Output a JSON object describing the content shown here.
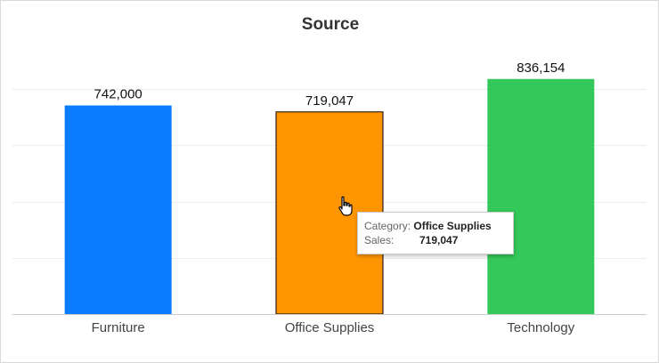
{
  "chart_data": {
    "type": "bar",
    "title": "Source",
    "categories": [
      "Furniture",
      "Office Supplies",
      "Technology"
    ],
    "values": [
      742000,
      719047,
      836154
    ],
    "value_labels": [
      "742,000",
      "719,047",
      "836,154"
    ],
    "ylim": [
      0,
      1000000
    ],
    "grid": true,
    "legend": "none",
    "colors": [
      "#0a7cff",
      "#ff9500",
      "#34c759"
    ],
    "highlighted_category": "Office Supplies"
  },
  "tooltip": {
    "category_label": "Category:",
    "category_value": "Office Supplies",
    "sales_label": "Sales:",
    "sales_value": "719,047"
  },
  "colors": {
    "grid": "#ececec",
    "axis": "#cccccc",
    "label": "#444444",
    "value_label": "#111111"
  }
}
